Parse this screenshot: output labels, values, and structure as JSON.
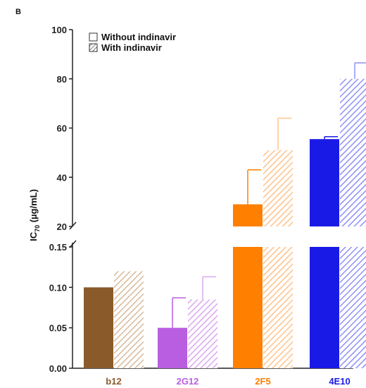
{
  "chart_data": {
    "type": "bar",
    "panel_label": "B",
    "ylabel": {
      "prefix": "IC",
      "subscript": "70",
      "suffix": " (µg/mL)"
    },
    "categories": [
      "b12",
      "2G12",
      "2F5",
      "4E10"
    ],
    "category_colors": [
      "#8b5a2b",
      "#b95ee0",
      "#ff7f00",
      "#1a1ae6"
    ],
    "category_colors_light": [
      "#d7b99a",
      "#dca8f0",
      "#ffc28a",
      "#9090f5"
    ],
    "series": [
      {
        "name": "Without indinavir",
        "pattern": "solid",
        "values": [
          0.1,
          0.05,
          29,
          55.5
        ],
        "errors": [
          0,
          0.037,
          14,
          1
        ]
      },
      {
        "name": "With indinavir",
        "pattern": "hatched",
        "values": [
          0.12,
          0.085,
          51,
          80
        ],
        "errors": [
          0,
          0.028,
          13,
          6.5
        ]
      }
    ],
    "axis_break": true,
    "lower_ylim": [
      0,
      0.15
    ],
    "lower_ticks": [
      "0.00",
      "0.05",
      "0.10",
      "0.15"
    ],
    "upper_ylim": [
      20,
      100
    ],
    "upper_ticks": [
      "20",
      "40",
      "60",
      "80",
      "100"
    ],
    "legend_placement": "top-left",
    "grid": false
  }
}
